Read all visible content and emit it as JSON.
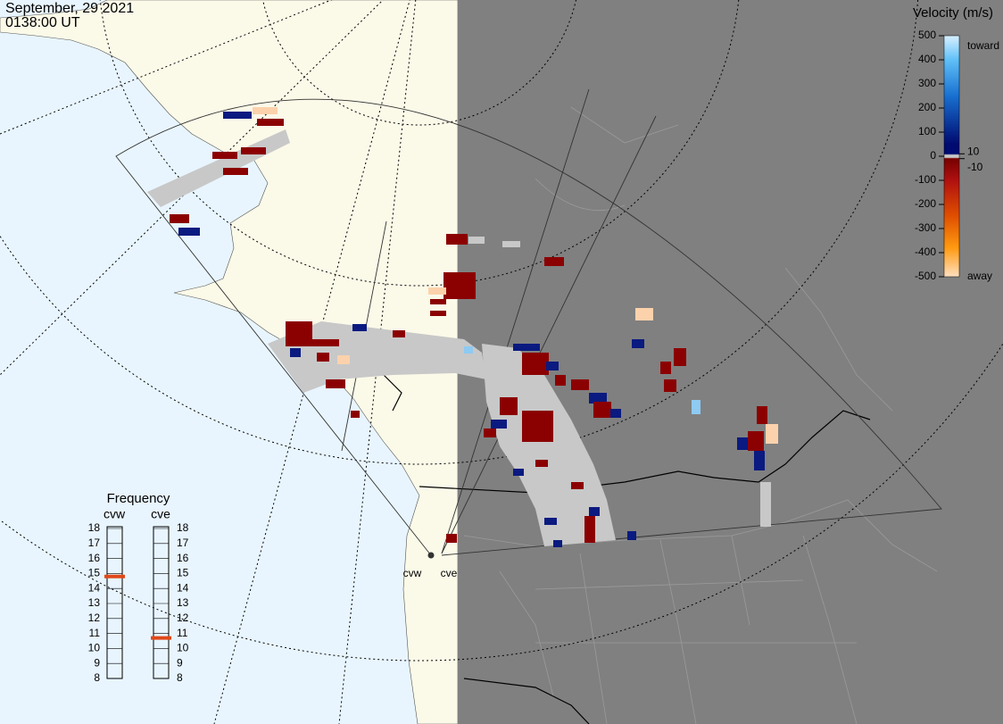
{
  "header": {
    "date": "September, 29 2021",
    "time": "0138:00 UT"
  },
  "velocity_scale": {
    "title": "Velocity (m/s)",
    "ticks": [
      500,
      400,
      300,
      200,
      100,
      0,
      -100,
      -200,
      -300,
      -400,
      -500
    ],
    "near_zero": [
      10,
      -10
    ],
    "toward": "toward",
    "away": "away"
  },
  "frequency": {
    "title": "Frequency",
    "ticks": [
      18,
      17,
      16,
      15,
      14,
      13,
      12,
      11,
      10,
      9,
      8
    ],
    "radars": [
      {
        "name": "cvw",
        "value": 14.8
      },
      {
        "name": "cve",
        "value": 10.7
      }
    ]
  },
  "radar_labels": [
    "cvw",
    "cve"
  ]
}
